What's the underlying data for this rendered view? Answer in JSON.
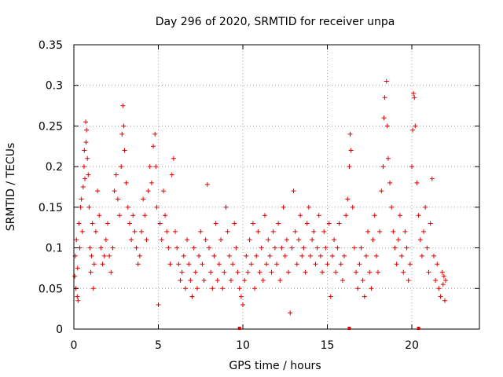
{
  "chart_data": {
    "type": "scatter",
    "title": "Day 296 of 2020, SRMTID for receiver unpa",
    "xlabel": "GPS time / hours",
    "ylabel": "SRMTID / TECUs",
    "xlim": [
      0,
      24
    ],
    "ylim": [
      0,
      0.35
    ],
    "xticks": [
      0,
      5,
      10,
      15,
      20
    ],
    "xtick_labels": [
      "0",
      "5",
      "10",
      "15",
      "20"
    ],
    "yticks": [
      0,
      0.05,
      0.1,
      0.15,
      0.2,
      0.25,
      0.3,
      0.35
    ],
    "ytick_labels": [
      "0",
      "0.05",
      "0.1",
      "0.15",
      "0.2",
      "0.25",
      "0.3",
      "0.35"
    ],
    "grid": true,
    "marker": "+",
    "colors": {
      "series": "#e00000",
      "axis": "#000000",
      "grid": "#a0a0a0"
    },
    "series": [
      {
        "name": "SRMTID",
        "points": [
          [
            0.05,
            0.065
          ],
          [
            0.08,
            0.09
          ],
          [
            0.12,
            0.05
          ],
          [
            0.15,
            0.11
          ],
          [
            0.2,
            0.04
          ],
          [
            0.22,
            0.075
          ],
          [
            0.25,
            0.035
          ],
          [
            0.3,
            0.13
          ],
          [
            0.35,
            0.1
          ],
          [
            0.4,
            0.15
          ],
          [
            0.45,
            0.16
          ],
          [
            0.5,
            0.12
          ],
          [
            0.55,
            0.175
          ],
          [
            0.6,
            0.2
          ],
          [
            0.62,
            0.22
          ],
          [
            0.65,
            0.185
          ],
          [
            0.7,
            0.255
          ],
          [
            0.72,
            0.23
          ],
          [
            0.75,
            0.245
          ],
          [
            0.8,
            0.21
          ],
          [
            0.85,
            0.19
          ],
          [
            0.9,
            0.15
          ],
          [
            0.95,
            0.1
          ],
          [
            1.0,
            0.07
          ],
          [
            1.05,
            0.09
          ],
          [
            1.1,
            0.13
          ],
          [
            1.15,
            0.05
          ],
          [
            1.2,
            0.08
          ],
          [
            1.3,
            0.12
          ],
          [
            1.4,
            0.17
          ],
          [
            1.5,
            0.14
          ],
          [
            1.6,
            0.1
          ],
          [
            1.7,
            0.08
          ],
          [
            1.8,
            0.09
          ],
          [
            1.9,
            0.11
          ],
          [
            2.0,
            0.13
          ],
          [
            2.1,
            0.09
          ],
          [
            2.2,
            0.07
          ],
          [
            2.3,
            0.1
          ],
          [
            2.4,
            0.17
          ],
          [
            2.5,
            0.19
          ],
          [
            2.6,
            0.16
          ],
          [
            2.7,
            0.14
          ],
          [
            2.8,
            0.2
          ],
          [
            2.85,
            0.24
          ],
          [
            2.9,
            0.275
          ],
          [
            2.95,
            0.25
          ],
          [
            3.0,
            0.22
          ],
          [
            3.1,
            0.18
          ],
          [
            3.2,
            0.15
          ],
          [
            3.3,
            0.13
          ],
          [
            3.4,
            0.11
          ],
          [
            3.5,
            0.14
          ],
          [
            3.6,
            0.12
          ],
          [
            3.7,
            0.1
          ],
          [
            3.8,
            0.08
          ],
          [
            3.9,
            0.09
          ],
          [
            4.0,
            0.12
          ],
          [
            4.1,
            0.16
          ],
          [
            4.2,
            0.14
          ],
          [
            4.3,
            0.11
          ],
          [
            4.4,
            0.17
          ],
          [
            4.5,
            0.2
          ],
          [
            4.6,
            0.18
          ],
          [
            4.7,
            0.225
          ],
          [
            4.8,
            0.24
          ],
          [
            4.85,
            0.2
          ],
          [
            4.9,
            0.15
          ],
          [
            5.0,
            0.03
          ],
          [
            5.1,
            0.13
          ],
          [
            5.2,
            0.11
          ],
          [
            5.3,
            0.17
          ],
          [
            5.4,
            0.14
          ],
          [
            5.5,
            0.12
          ],
          [
            5.6,
            0.1
          ],
          [
            5.7,
            0.08
          ],
          [
            5.8,
            0.19
          ],
          [
            5.9,
            0.21
          ],
          [
            6.0,
            0.12
          ],
          [
            6.1,
            0.1
          ],
          [
            6.2,
            0.08
          ],
          [
            6.3,
            0.06
          ],
          [
            6.4,
            0.07
          ],
          [
            6.5,
            0.09
          ],
          [
            6.6,
            0.05
          ],
          [
            6.7,
            0.11
          ],
          [
            6.8,
            0.08
          ],
          [
            6.9,
            0.06
          ],
          [
            7.0,
            0.04
          ],
          [
            7.1,
            0.1
          ],
          [
            7.2,
            0.07
          ],
          [
            7.3,
            0.05
          ],
          [
            7.4,
            0.09
          ],
          [
            7.5,
            0.12
          ],
          [
            7.6,
            0.08
          ],
          [
            7.7,
            0.06
          ],
          [
            7.8,
            0.11
          ],
          [
            7.9,
            0.178
          ],
          [
            8.0,
            0.1
          ],
          [
            8.1,
            0.07
          ],
          [
            8.2,
            0.05
          ],
          [
            8.3,
            0.09
          ],
          [
            8.4,
            0.13
          ],
          [
            8.5,
            0.06
          ],
          [
            8.6,
            0.08
          ],
          [
            8.7,
            0.11
          ],
          [
            8.8,
            0.05
          ],
          [
            8.9,
            0.07
          ],
          [
            9.0,
            0.15
          ],
          [
            9.1,
            0.12
          ],
          [
            9.2,
            0.09
          ],
          [
            9.3,
            0.06
          ],
          [
            9.4,
            0.08
          ],
          [
            9.5,
            0.13
          ],
          [
            9.6,
            0.1
          ],
          [
            9.7,
            0.07
          ],
          [
            9.8,
            0.05
          ],
          [
            9.9,
            0.04
          ],
          [
            10.0,
            0.03
          ],
          [
            10.1,
            0.06
          ],
          [
            10.2,
            0.09
          ],
          [
            10.3,
            0.07
          ],
          [
            10.4,
            0.11
          ],
          [
            10.5,
            0.08
          ],
          [
            10.6,
            0.13
          ],
          [
            10.7,
            0.05
          ],
          [
            10.8,
            0.09
          ],
          [
            10.9,
            0.12
          ],
          [
            11.0,
            0.07
          ],
          [
            11.1,
            0.1
          ],
          [
            11.2,
            0.06
          ],
          [
            11.3,
            0.14
          ],
          [
            11.4,
            0.08
          ],
          [
            11.5,
            0.11
          ],
          [
            11.6,
            0.09
          ],
          [
            11.7,
            0.07
          ],
          [
            11.8,
            0.12
          ],
          [
            11.9,
            0.1
          ],
          [
            12.0,
            0.08
          ],
          [
            12.1,
            0.13
          ],
          [
            12.2,
            0.06
          ],
          [
            12.3,
            0.1
          ],
          [
            12.4,
            0.15
          ],
          [
            12.5,
            0.09
          ],
          [
            12.6,
            0.11
          ],
          [
            12.7,
            0.07
          ],
          [
            12.8,
            0.02
          ],
          [
            12.9,
            0.1
          ],
          [
            13.0,
            0.17
          ],
          [
            13.1,
            0.12
          ],
          [
            13.2,
            0.08
          ],
          [
            13.3,
            0.11
          ],
          [
            13.4,
            0.14
          ],
          [
            13.5,
            0.09
          ],
          [
            13.6,
            0.1
          ],
          [
            13.7,
            0.07
          ],
          [
            13.8,
            0.13
          ],
          [
            13.9,
            0.15
          ],
          [
            14.0,
            0.09
          ],
          [
            14.1,
            0.11
          ],
          [
            14.2,
            0.12
          ],
          [
            14.3,
            0.08
          ],
          [
            14.4,
            0.1
          ],
          [
            14.5,
            0.14
          ],
          [
            14.6,
            0.09
          ],
          [
            14.7,
            0.07
          ],
          [
            14.8,
            0.12
          ],
          [
            14.9,
            0.1
          ],
          [
            15.0,
            0.08
          ],
          [
            15.1,
            0.13
          ],
          [
            15.2,
            0.04
          ],
          [
            15.3,
            0.09
          ],
          [
            15.4,
            0.11
          ],
          [
            15.5,
            0.07
          ],
          [
            15.6,
            0.1
          ],
          [
            15.7,
            0.13
          ],
          [
            15.8,
            0.08
          ],
          [
            15.9,
            0.06
          ],
          [
            16.0,
            0.09
          ],
          [
            16.1,
            0.14
          ],
          [
            16.2,
            0.16
          ],
          [
            16.3,
            0.2
          ],
          [
            16.35,
            0.24
          ],
          [
            16.4,
            0.22
          ],
          [
            16.5,
            0.15
          ],
          [
            16.6,
            0.1
          ],
          [
            16.7,
            0.07
          ],
          [
            16.8,
            0.05
          ],
          [
            16.9,
            0.08
          ],
          [
            17.0,
            0.1
          ],
          [
            17.1,
            0.06
          ],
          [
            17.2,
            0.04
          ],
          [
            17.3,
            0.09
          ],
          [
            17.4,
            0.12
          ],
          [
            17.5,
            0.07
          ],
          [
            17.6,
            0.05
          ],
          [
            17.7,
            0.11
          ],
          [
            17.8,
            0.14
          ],
          [
            17.9,
            0.09
          ],
          [
            18.0,
            0.07
          ],
          [
            18.1,
            0.12
          ],
          [
            18.2,
            0.17
          ],
          [
            18.3,
            0.2
          ],
          [
            18.35,
            0.26
          ],
          [
            18.4,
            0.285
          ],
          [
            18.5,
            0.305
          ],
          [
            18.55,
            0.25
          ],
          [
            18.6,
            0.21
          ],
          [
            18.7,
            0.18
          ],
          [
            18.8,
            0.15
          ],
          [
            18.9,
            0.12
          ],
          [
            19.0,
            0.1
          ],
          [
            19.1,
            0.08
          ],
          [
            19.2,
            0.11
          ],
          [
            19.3,
            0.14
          ],
          [
            19.4,
            0.09
          ],
          [
            19.5,
            0.07
          ],
          [
            19.6,
            0.12
          ],
          [
            19.7,
            0.1
          ],
          [
            19.8,
            0.06
          ],
          [
            19.9,
            0.08
          ],
          [
            20.0,
            0.2
          ],
          [
            20.05,
            0.245
          ],
          [
            20.1,
            0.29
          ],
          [
            20.15,
            0.285
          ],
          [
            20.2,
            0.25
          ],
          [
            20.3,
            0.18
          ],
          [
            20.4,
            0.14
          ],
          [
            20.5,
            0.11
          ],
          [
            20.6,
            0.09
          ],
          [
            20.7,
            0.12
          ],
          [
            20.8,
            0.15
          ],
          [
            20.9,
            0.1
          ],
          [
            21.0,
            0.07
          ],
          [
            21.1,
            0.13
          ],
          [
            21.2,
            0.185
          ],
          [
            21.3,
            0.09
          ],
          [
            21.4,
            0.06
          ],
          [
            21.5,
            0.08
          ],
          [
            21.6,
            0.05
          ],
          [
            21.7,
            0.04
          ],
          [
            21.8,
            0.07
          ],
          [
            21.85,
            0.055
          ],
          [
            21.9,
            0.065
          ],
          [
            21.95,
            0.035
          ],
          [
            22.0,
            0.06
          ]
        ]
      }
    ],
    "marker_positions_x": [
      9.8,
      16.3,
      20.4
    ]
  }
}
